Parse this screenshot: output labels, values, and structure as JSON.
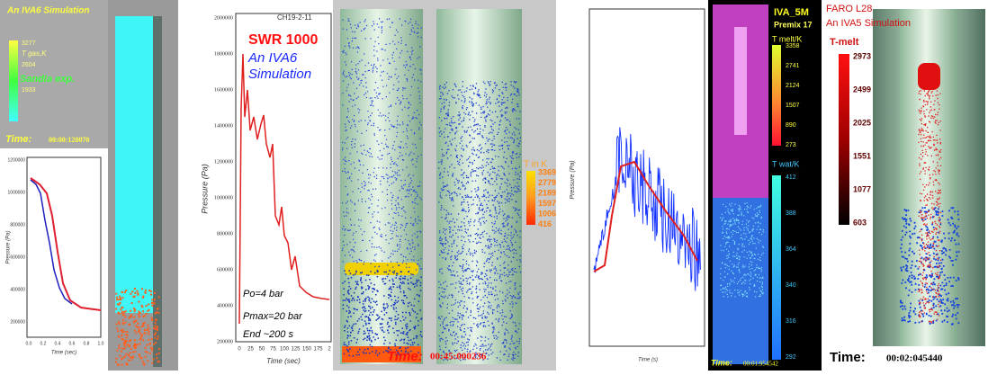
{
  "panels": [
    {
      "title": "An IVA6 Simulation",
      "colorbar_label": "T gas,K",
      "colorbar_ticks": [
        "3277",
        "2604",
        "1933"
      ],
      "note": "Sandia exp.",
      "time": "Time:",
      "time_value": "00:00:120070",
      "plot": {
        "y_label": "Pressure (Pa)",
        "x_label": "Time (sec)",
        "yticks": [
          "1200000",
          "1000000",
          "800000",
          "600000",
          "400000",
          "200000"
        ],
        "xticks": [
          "0.0",
          "0.2",
          "0.4",
          "0.6",
          "0.8",
          "1.0"
        ]
      }
    },
    {
      "legend": "CH19-2-11",
      "title": "SWR 1000",
      "subtitle": [
        "An IVA6",
        "Simulation"
      ],
      "notes": [
        "Po=4 bar",
        "Pmax=20 bar",
        "End ~200 s"
      ],
      "plot": {
        "y_label": "Pressure (Pa)",
        "x_label": "Time (sec)",
        "yticks": [
          "2000000",
          "1800000",
          "1600000",
          "1400000",
          "1200000",
          "1000000",
          "800000",
          "600000",
          "400000",
          "200000"
        ],
        "xticks": [
          "0",
          "25",
          "50",
          "75",
          "100",
          "125",
          "150",
          "175",
          "2"
        ]
      }
    },
    {
      "colorbar_label": "T in K",
      "colorbar_ticks": [
        "3369",
        "2779",
        "2189",
        "1597",
        "1006",
        "416"
      ],
      "time": "Time:",
      "time_value": "00:45:000236"
    },
    {
      "plot": {
        "y_label": "Pressure (Pa)",
        "x_label": "Time (s)"
      }
    },
    {
      "title": "IVA_5M",
      "subtitle": "Premix 17",
      "melt_label": "T melt/K",
      "melt_ticks": [
        "3358",
        "2741",
        "2124",
        "1507",
        "890",
        "273"
      ],
      "water_label": "T wat/K",
      "water_ticks": [
        "412",
        "388",
        "364",
        "340",
        "316",
        "292"
      ],
      "time": "Time:",
      "time_value": "00:01:954542"
    },
    {
      "title": "FARO L28",
      "subtitle": "An IVA5 Simulation",
      "colorbar_label": "T-melt",
      "colorbar_ticks": [
        "2973",
        "2499",
        "2025",
        "1551",
        "1077",
        "603"
      ],
      "time": "Time:",
      "time_value": "00:02:045440"
    }
  ]
}
